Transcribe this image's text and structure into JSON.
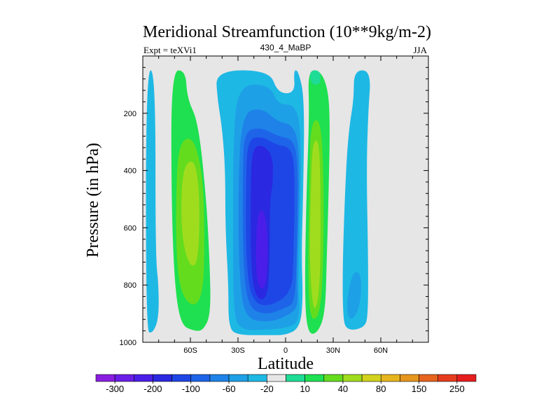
{
  "chart_data": {
    "type": "contour",
    "title": "Meridional Streamfunction (10**9kg/m-2)",
    "left_label": "Expt = teXVi1",
    "center_label": "430_4_MaBP",
    "right_label": "JJA",
    "xlabel": "Latitude",
    "ylabel": "Pressure (in hPa)",
    "xlim": [
      -90,
      90
    ],
    "ylim": [
      1000,
      0
    ],
    "xticks": [
      {
        "value": -60,
        "label": "60S"
      },
      {
        "value": -30,
        "label": "30S"
      },
      {
        "value": 0,
        "label": "0"
      },
      {
        "value": 30,
        "label": "30N"
      },
      {
        "value": 60,
        "label": "60N"
      }
    ],
    "yticks": [
      {
        "value": 200,
        "label": "200"
      },
      {
        "value": 400,
        "label": "400"
      },
      {
        "value": 600,
        "label": "600"
      },
      {
        "value": 800,
        "label": "800"
      },
      {
        "value": 1000,
        "label": "1000"
      }
    ],
    "colorbar": {
      "colors": [
        "#8a1ee0",
        "#6a1ee8",
        "#4a1ee8",
        "#2a28e0",
        "#1e46e6",
        "#1e64e8",
        "#1e82e8",
        "#1ea0e6",
        "#1eb8e4",
        "#e6e6e6",
        "#1edc96",
        "#1ee050",
        "#64dc1e",
        "#a0dc1e",
        "#d2d21e",
        "#e6b41e",
        "#e6961e",
        "#e6641e",
        "#e63c1e",
        "#e61e1e"
      ],
      "labels": [
        {
          "boundary": 1,
          "label": "-300"
        },
        {
          "boundary": 3,
          "label": "-200"
        },
        {
          "boundary": 5,
          "label": "-100"
        },
        {
          "boundary": 7,
          "label": "-60"
        },
        {
          "boundary": 9,
          "label": "-20"
        },
        {
          "boundary": 11,
          "label": "10"
        },
        {
          "boundary": 13,
          "label": "40"
        },
        {
          "boundary": 15,
          "label": "80"
        },
        {
          "boundary": 17,
          "label": "150"
        },
        {
          "boundary": 19,
          "label": "250"
        }
      ]
    },
    "background_color": "#e6e6e6",
    "regions": [
      {
        "name": "sh-polar-cell",
        "color": "#1eb8e4",
        "points": [
          [
            -88,
            50
          ],
          [
            -82,
            50
          ],
          [
            -82,
            700
          ],
          [
            -80,
            800
          ],
          [
            -80,
            920
          ],
          [
            -84,
            970
          ],
          [
            -88,
            960
          ]
        ]
      },
      {
        "name": "sh-ferrel-cell-outer",
        "color": "#1ee050",
        "points": [
          [
            -72,
            50
          ],
          [
            -63,
            50
          ],
          [
            -62,
            150
          ],
          [
            -55,
            230
          ],
          [
            -50,
            500
          ],
          [
            -48,
            700
          ],
          [
            -47,
            900
          ],
          [
            -52,
            960
          ],
          [
            -58,
            960
          ],
          [
            -66,
            940
          ],
          [
            -70,
            800
          ],
          [
            -72,
            500
          ]
        ]
      },
      {
        "name": "sh-ferrel-cell-mid",
        "color": "#64dc1e",
        "points": [
          [
            -67,
            300
          ],
          [
            -58,
            280
          ],
          [
            -52,
            420
          ],
          [
            -51,
            650
          ],
          [
            -52,
            830
          ],
          [
            -58,
            880
          ],
          [
            -66,
            830
          ],
          [
            -69,
            700
          ],
          [
            -69,
            450
          ]
        ]
      },
      {
        "name": "sh-ferrel-cell-core",
        "color": "#a0dc1e",
        "points": [
          [
            -64,
            380
          ],
          [
            -57,
            360
          ],
          [
            -54,
            500
          ],
          [
            -55,
            720
          ],
          [
            -60,
            740
          ],
          [
            -65,
            650
          ],
          [
            -66,
            500
          ]
        ]
      },
      {
        "name": "sh-hadley-cell-outer",
        "color": "#1eb8e4",
        "points": [
          [
            -44,
            50
          ],
          [
            -10,
            50
          ],
          [
            -5,
            130
          ],
          [
            6,
            130
          ],
          [
            5,
            50
          ],
          [
            8,
            50
          ],
          [
            12,
            150
          ],
          [
            11,
            500
          ],
          [
            10,
            700
          ],
          [
            11,
            850
          ],
          [
            9,
            950
          ],
          [
            0,
            975
          ],
          [
            -10,
            975
          ],
          [
            -30,
            975
          ],
          [
            -36,
            950
          ],
          [
            -36,
            800
          ],
          [
            -38,
            600
          ],
          [
            -38,
            400
          ],
          [
            -40,
            250
          ],
          [
            -43,
            150
          ]
        ]
      },
      {
        "name": "sh-hadley-cell-level2",
        "color": "#1ea0e6",
        "points": [
          [
            -30,
            100
          ],
          [
            -10,
            100
          ],
          [
            -5,
            170
          ],
          [
            7,
            170
          ],
          [
            10,
            300
          ],
          [
            9,
            600
          ],
          [
            8,
            800
          ],
          [
            9,
            930
          ],
          [
            0,
            950
          ],
          [
            -10,
            955
          ],
          [
            -28,
            960
          ],
          [
            -33,
            900
          ],
          [
            -33,
            600
          ],
          [
            -33,
            300
          ]
        ]
      },
      {
        "name": "sh-hadley-cell-level3",
        "color": "#1e82e8",
        "points": [
          [
            -28,
            200
          ],
          [
            -15,
            180
          ],
          [
            -5,
            230
          ],
          [
            5,
            240
          ],
          [
            9,
            330
          ],
          [
            8,
            600
          ],
          [
            7,
            780
          ],
          [
            8,
            880
          ],
          [
            0,
            910
          ],
          [
            -10,
            930
          ],
          [
            -25,
            920
          ],
          [
            -29,
            800
          ],
          [
            -30,
            500
          ]
        ]
      },
      {
        "name": "sh-hadley-cell-level4",
        "color": "#1e64e8",
        "points": [
          [
            -26,
            260
          ],
          [
            -15,
            250
          ],
          [
            -5,
            280
          ],
          [
            5,
            290
          ],
          [
            8,
            380
          ],
          [
            7,
            700
          ],
          [
            6,
            860
          ],
          [
            0,
            880
          ],
          [
            -12,
            905
          ],
          [
            -24,
            880
          ],
          [
            -27,
            700
          ],
          [
            -27,
            400
          ]
        ]
      },
      {
        "name": "sh-hadley-cell-level5",
        "color": "#1e46e6",
        "points": [
          [
            -24,
            290
          ],
          [
            -15,
            280
          ],
          [
            -6,
            310
          ],
          [
            4,
            320
          ],
          [
            6,
            420
          ],
          [
            5,
            700
          ],
          [
            4,
            830
          ],
          [
            -12,
            880
          ],
          [
            -22,
            850
          ],
          [
            -25,
            700
          ],
          [
            -25,
            450
          ]
        ]
      },
      {
        "name": "sh-hadley-cell-level6",
        "color": "#2a28e0",
        "points": [
          [
            -21,
            320
          ],
          [
            -14,
            310
          ],
          [
            -8,
            350
          ],
          [
            -8,
            450
          ],
          [
            -10,
            500
          ],
          [
            -10,
            800
          ],
          [
            -14,
            860
          ],
          [
            -20,
            830
          ],
          [
            -22,
            700
          ],
          [
            -22,
            450
          ]
        ]
      },
      {
        "name": "sh-hadley-cell-core",
        "color": "#4a1ee8",
        "points": [
          [
            -18,
            540
          ],
          [
            -13,
            540
          ],
          [
            -11,
            650
          ],
          [
            -12,
            800
          ],
          [
            -16,
            820
          ],
          [
            -19,
            750
          ]
        ]
      },
      {
        "name": "nh-hadley-cell-outer",
        "color": "#1ee050",
        "points": [
          [
            14,
            50
          ],
          [
            22,
            50
          ],
          [
            27,
            120
          ],
          [
            28,
            250
          ],
          [
            27,
            500
          ],
          [
            26,
            700
          ],
          [
            25,
            900
          ],
          [
            20,
            970
          ],
          [
            14,
            970
          ],
          [
            12,
            850
          ],
          [
            13,
            500
          ],
          [
            15,
            200
          ]
        ]
      },
      {
        "name": "nh-hadley-cell-top",
        "color": "#1edc96",
        "points": [
          [
            15,
            50
          ],
          [
            22,
            50
          ],
          [
            22,
            100
          ],
          [
            16,
            100
          ]
        ]
      },
      {
        "name": "nh-hadley-cell-mid",
        "color": "#64dc1e",
        "points": [
          [
            16,
            230
          ],
          [
            22,
            220
          ],
          [
            24,
            400
          ],
          [
            24,
            700
          ],
          [
            22,
            900
          ],
          [
            16,
            930
          ],
          [
            14,
            800
          ],
          [
            15,
            400
          ]
        ]
      },
      {
        "name": "nh-hadley-cell-core",
        "color": "#a0dc1e",
        "points": [
          [
            17,
            300
          ],
          [
            21,
            290
          ],
          [
            22,
            450
          ],
          [
            22,
            750
          ],
          [
            20,
            880
          ],
          [
            17,
            880
          ],
          [
            15,
            700
          ],
          [
            16,
            450
          ]
        ]
      },
      {
        "name": "nh-ferrel-cell",
        "color": "#1eb8e4",
        "points": [
          [
            43,
            50
          ],
          [
            54,
            50
          ],
          [
            52,
            200
          ],
          [
            51,
            400
          ],
          [
            52,
            700
          ],
          [
            52,
            900
          ],
          [
            50,
            950
          ],
          [
            38,
            960
          ],
          [
            36,
            900
          ],
          [
            36,
            700
          ],
          [
            38,
            400
          ],
          [
            40,
            250
          ],
          [
            43,
            150
          ]
        ]
      },
      {
        "name": "nh-ferrel-cell-inner",
        "color": "#1ea0e6",
        "points": [
          [
            42,
            750
          ],
          [
            48,
            760
          ],
          [
            47,
            880
          ],
          [
            41,
            930
          ],
          [
            38,
            880
          ]
        ]
      }
    ]
  }
}
